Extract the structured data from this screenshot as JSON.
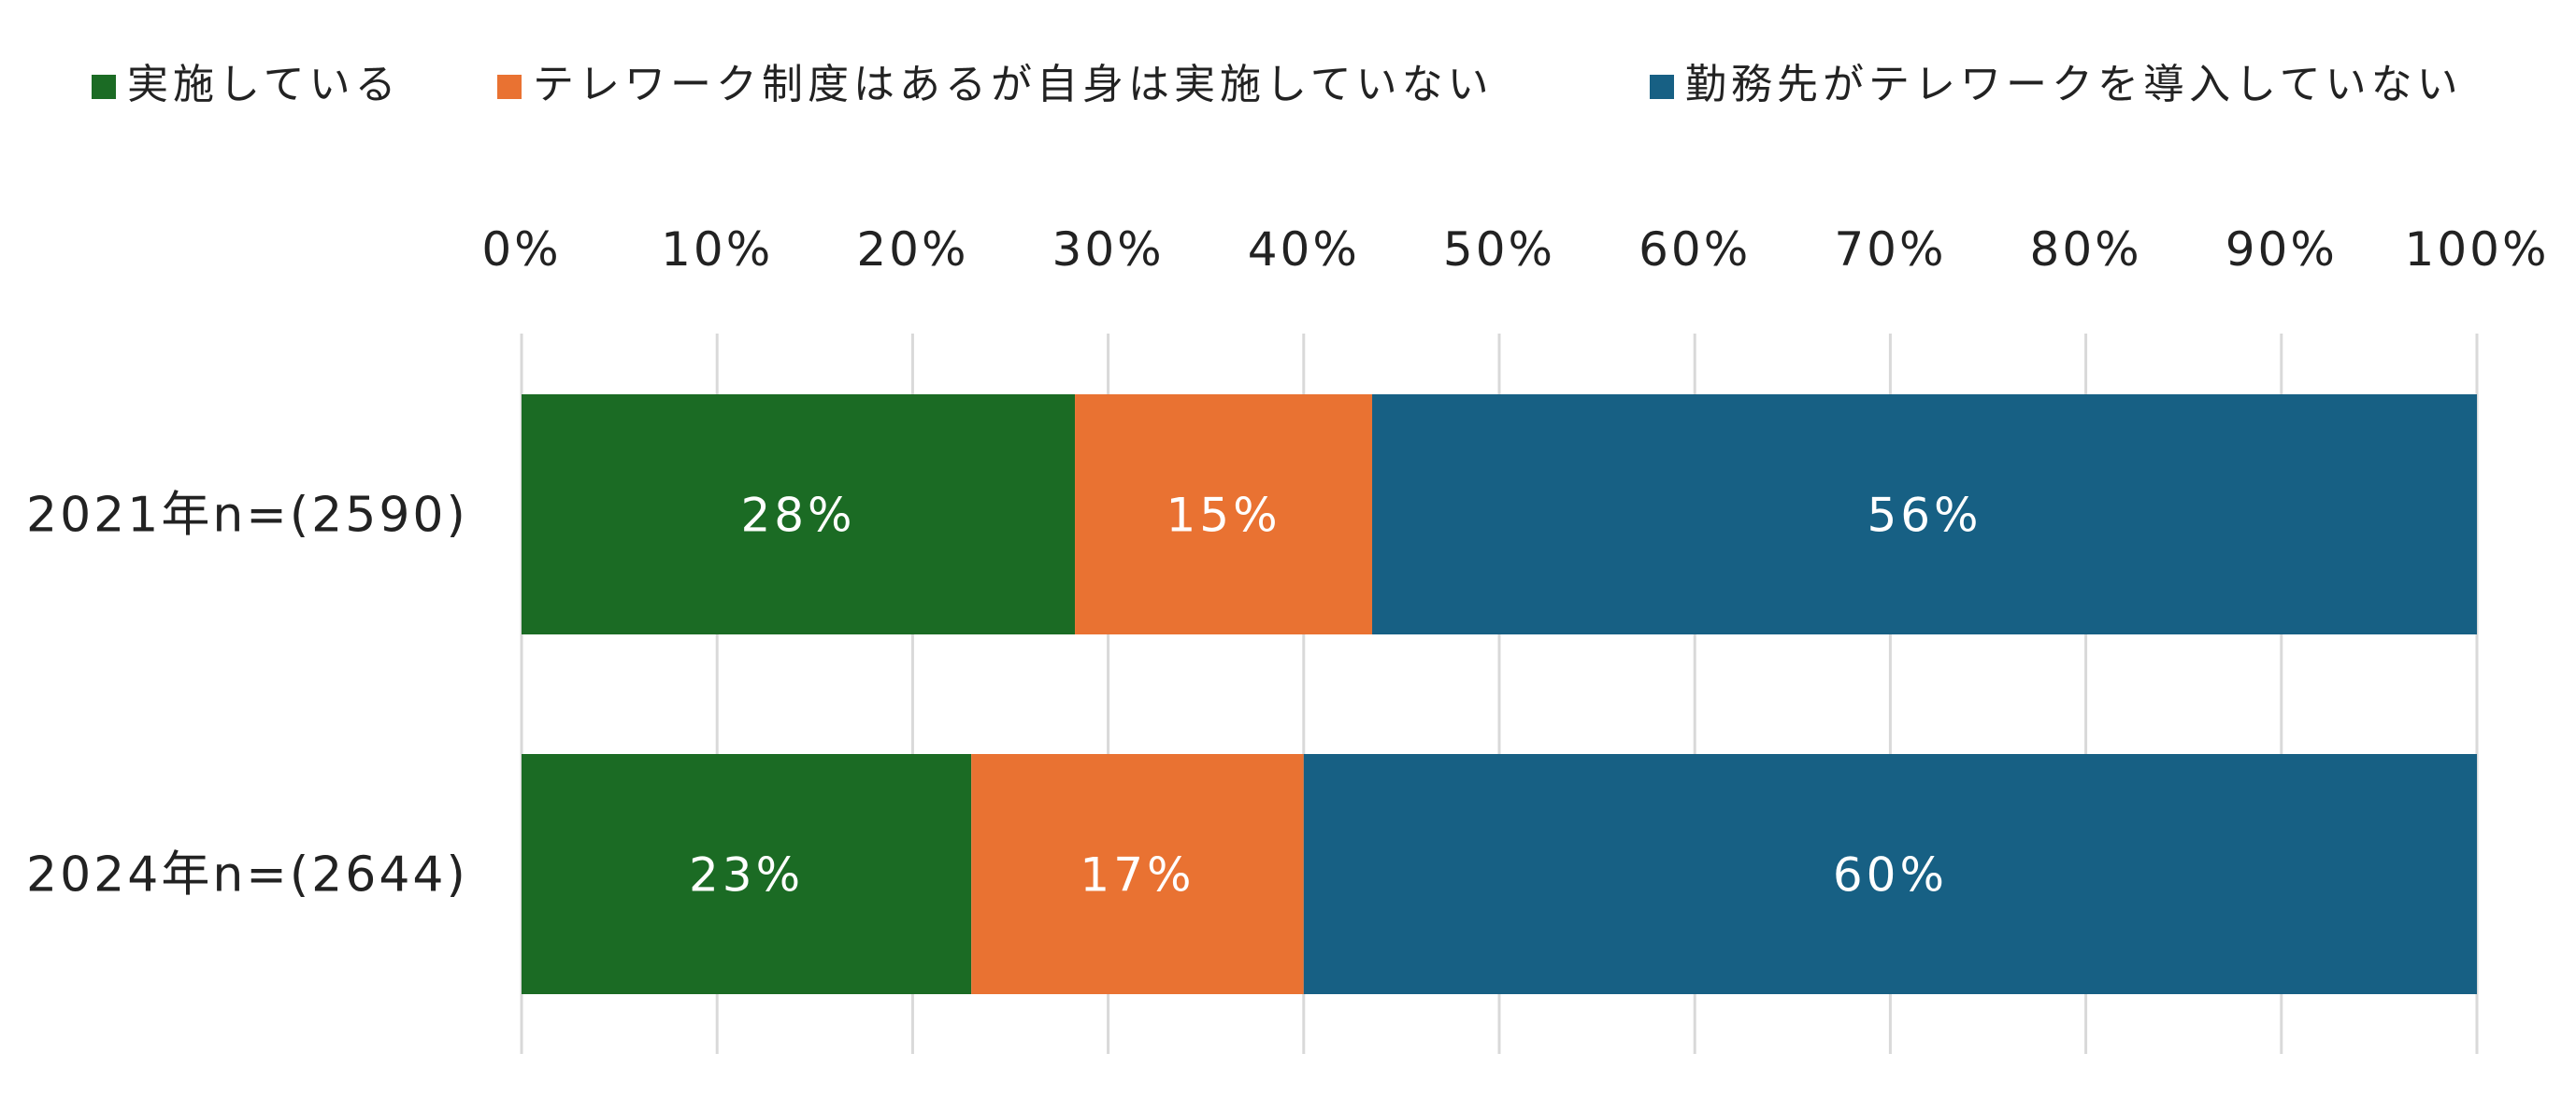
{
  "chart_data": {
    "type": "bar",
    "orientation": "horizontal",
    "stacked": true,
    "title": "",
    "xlabel": "",
    "ylabel": "",
    "xlim": [
      0,
      100
    ],
    "x_ticks": [
      "0%",
      "10%",
      "20%",
      "30%",
      "40%",
      "50%",
      "60%",
      "70%",
      "80%",
      "90%",
      "100%"
    ],
    "grid": "vertical",
    "legend_position": "top",
    "categories": [
      "2021年n=(2590)",
      "2024年n=(2644)"
    ],
    "series": [
      {
        "name": "実施している",
        "color": "#1b6b24",
        "values": [
          28.3,
          23.0
        ],
        "labels": [
          "28%",
          "23%"
        ]
      },
      {
        "name": "テレワーク制度はあるが自身は実施していない",
        "color": "#e97232",
        "values": [
          15.2,
          17.0
        ],
        "labels": [
          "15%",
          "17%"
        ]
      },
      {
        "name": "勤務先がテレワークを導入していない",
        "color": "#176084",
        "values": [
          56.5,
          60.0
        ],
        "labels": [
          "56%",
          "60%"
        ]
      }
    ]
  }
}
